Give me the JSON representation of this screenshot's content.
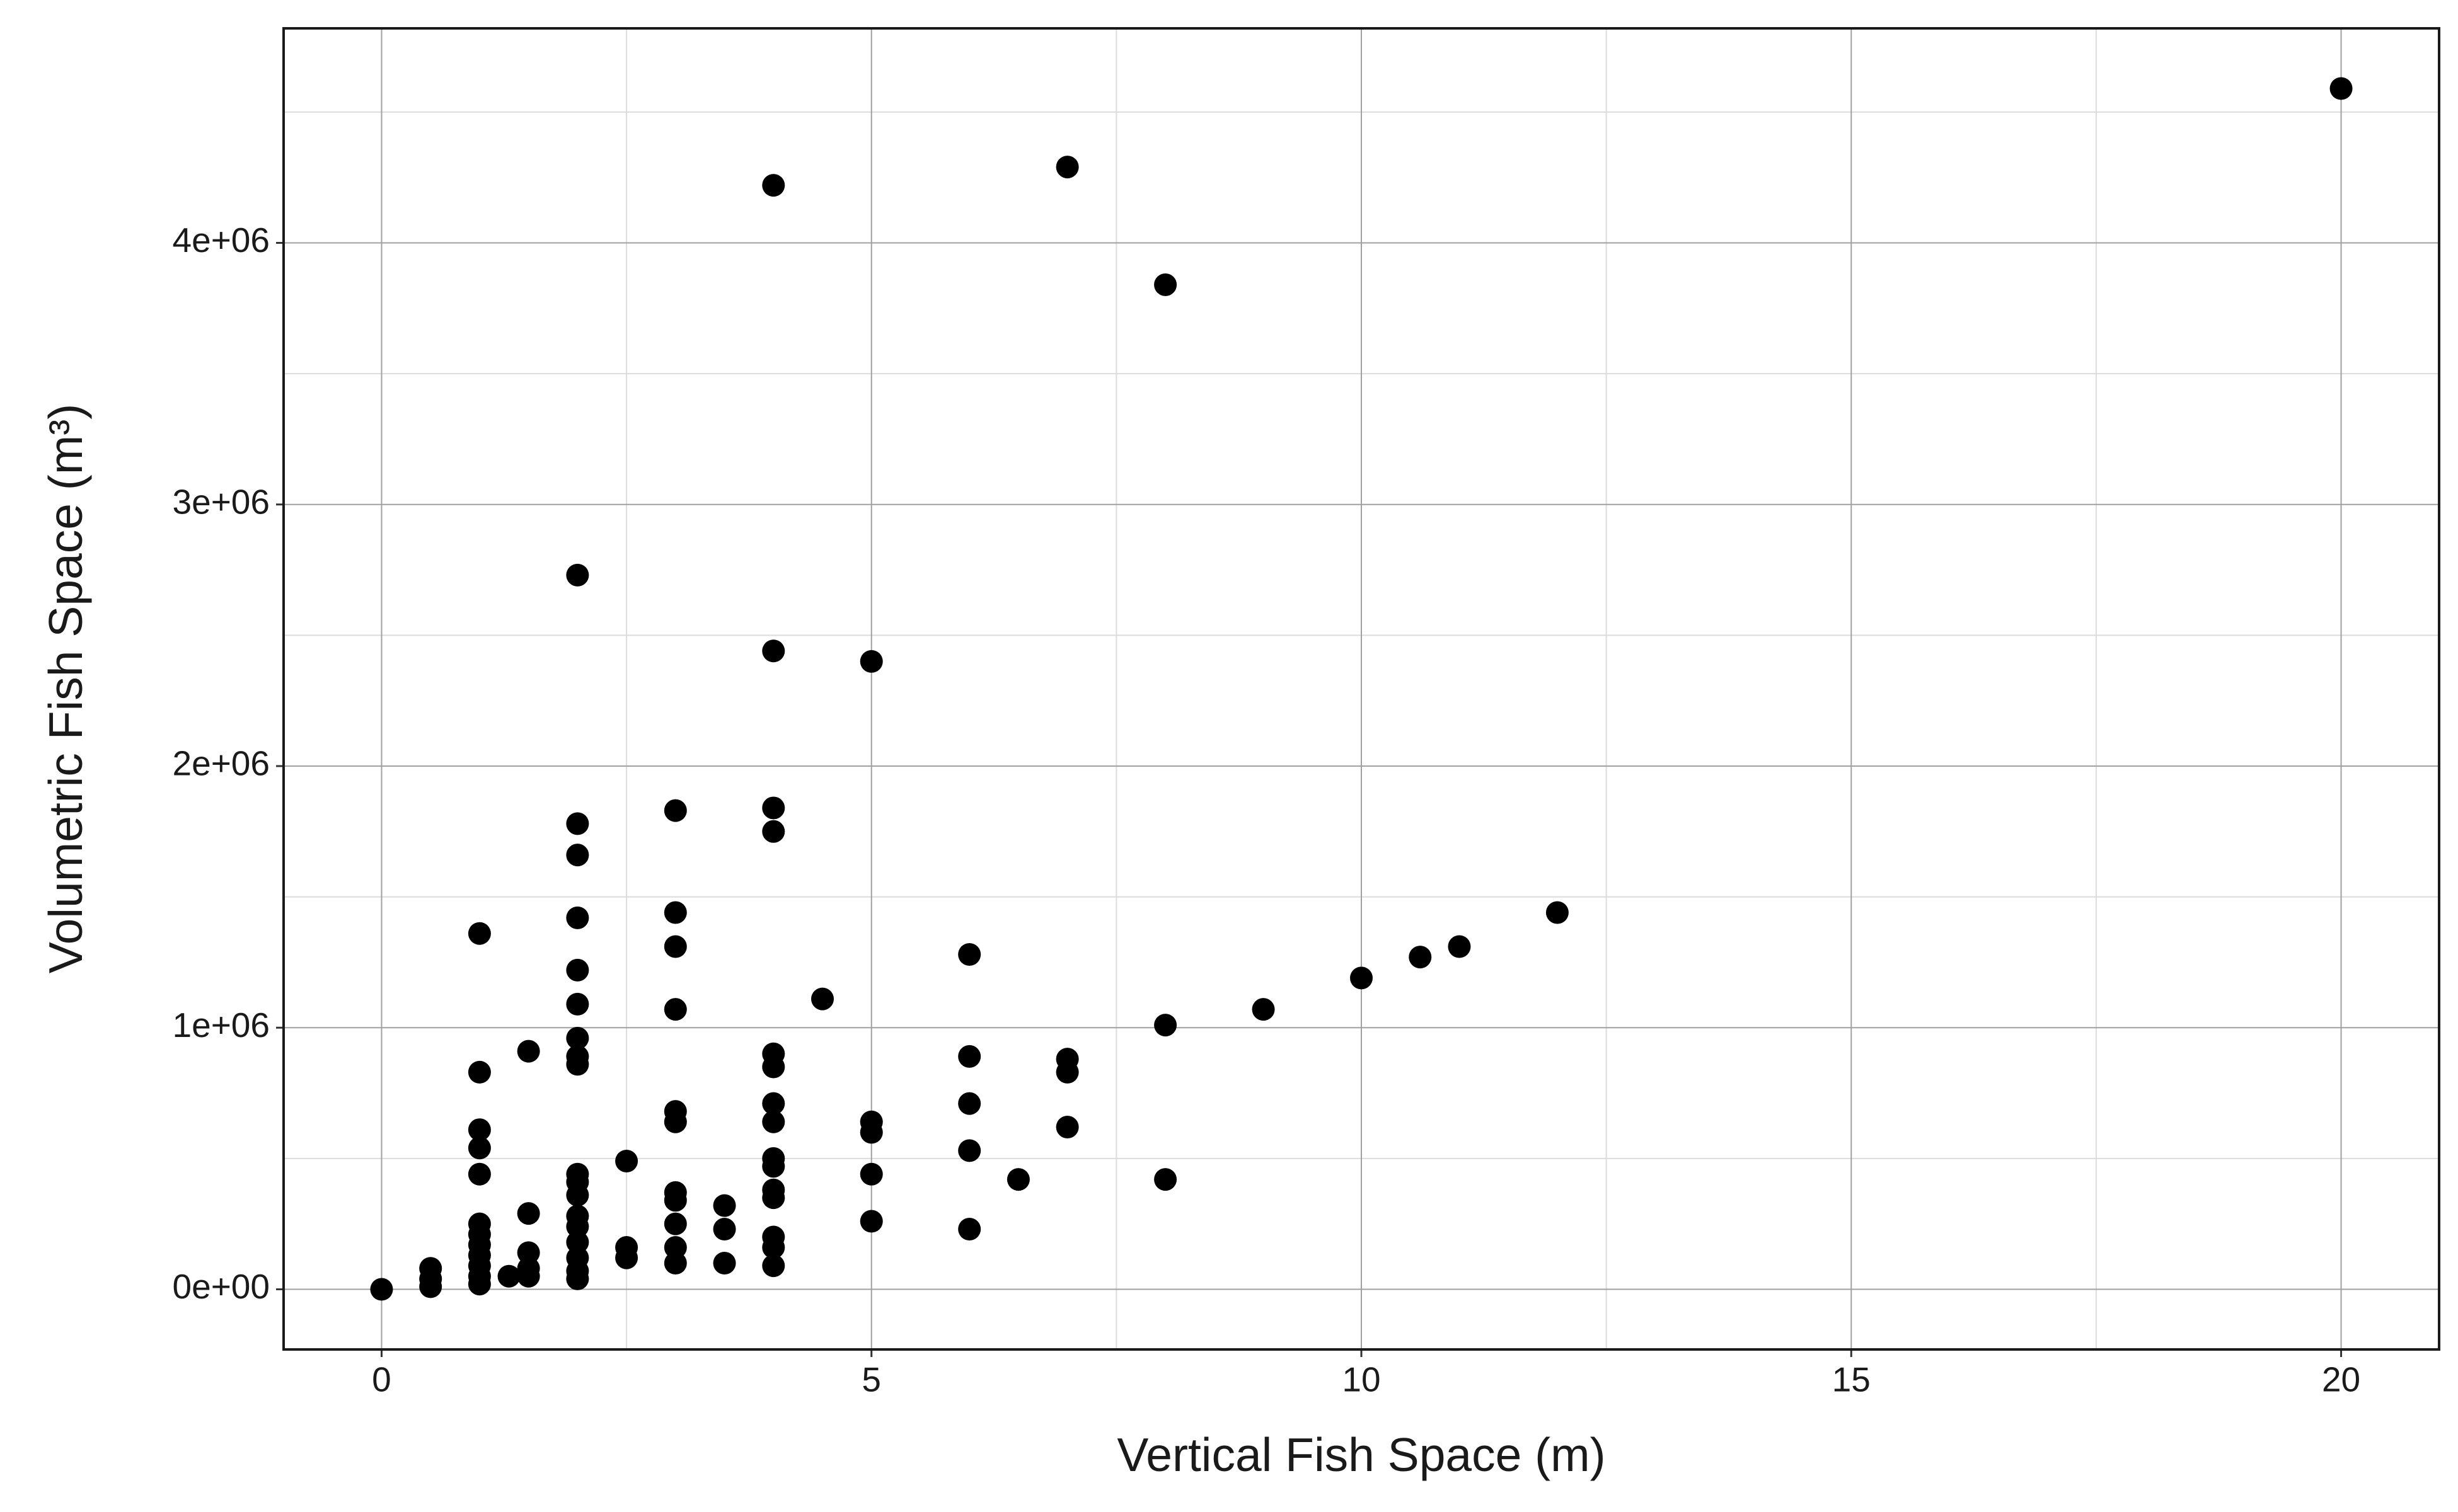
{
  "chart_data": {
    "type": "scatter",
    "x_label": "Vertical Fish Space (m)",
    "y_label": "Volumetric Fish Space (m³)",
    "x": [
      0,
      0.5,
      0.5,
      0.5,
      1,
      1,
      1,
      1,
      1,
      1,
      1,
      1,
      1,
      1,
      1,
      1,
      1.3,
      1.5,
      1.5,
      1.5,
      1.5,
      1.5,
      2,
      2,
      2,
      2,
      2,
      2,
      2,
      2,
      2,
      2,
      2,
      2,
      2,
      2,
      2,
      2,
      2,
      2,
      2.5,
      2.5,
      2.5,
      3,
      3,
      3,
      3,
      3,
      3,
      3,
      3,
      3,
      3,
      3,
      3.5,
      3.5,
      3.5,
      4,
      4,
      4,
      4,
      4,
      4,
      4,
      4,
      4,
      4,
      4,
      4,
      4,
      4,
      4,
      4.5,
      5,
      5,
      5,
      5,
      5,
      6,
      6,
      6,
      6,
      6,
      6.5,
      7,
      7,
      7,
      7,
      8,
      8,
      8,
      9,
      10,
      10.6,
      11,
      12,
      20
    ],
    "values": [
      0,
      80000,
      40000,
      10000,
      1360000,
      830000,
      610000,
      540000,
      440000,
      250000,
      210000,
      170000,
      130000,
      90000,
      50000,
      20000,
      50000,
      910000,
      290000,
      140000,
      80000,
      50000,
      2730000,
      1780000,
      1660000,
      1420000,
      1220000,
      1090000,
      960000,
      890000,
      860000,
      440000,
      410000,
      360000,
      280000,
      240000,
      180000,
      120000,
      70000,
      40000,
      490000,
      160000,
      120000,
      1830000,
      1440000,
      1310000,
      1070000,
      680000,
      640000,
      370000,
      340000,
      250000,
      160000,
      100000,
      320000,
      230000,
      100000,
      4220000,
      2440000,
      1840000,
      1750000,
      900000,
      850000,
      710000,
      640000,
      500000,
      470000,
      380000,
      350000,
      200000,
      160000,
      90000,
      1110000,
      2400000,
      640000,
      600000,
      440000,
      260000,
      1280000,
      890000,
      710000,
      530000,
      230000,
      420000,
      4290000,
      880000,
      830000,
      620000,
      3840000,
      1010000,
      420000,
      1070000,
      1190000,
      1270000,
      1310000,
      1440000,
      4590000
    ],
    "color": "#000000",
    "xlim": [
      -1,
      21
    ],
    "ylim": [
      -230000,
      4820000
    ],
    "xticks": [
      0,
      5,
      10,
      15,
      20
    ],
    "xminor": [
      2.5,
      7.5,
      12.5,
      17.5
    ],
    "yticks": [
      {
        "value": 0,
        "label": "0e+00"
      },
      {
        "value": 1000000,
        "label": "1e+06"
      },
      {
        "value": 2000000,
        "label": "2e+06"
      },
      {
        "value": 3000000,
        "label": "3e+06"
      },
      {
        "value": 4000000,
        "label": "4e+06"
      }
    ],
    "yminor": [
      500000,
      1500000,
      2500000,
      3500000,
      4500000
    ],
    "grid": true
  }
}
